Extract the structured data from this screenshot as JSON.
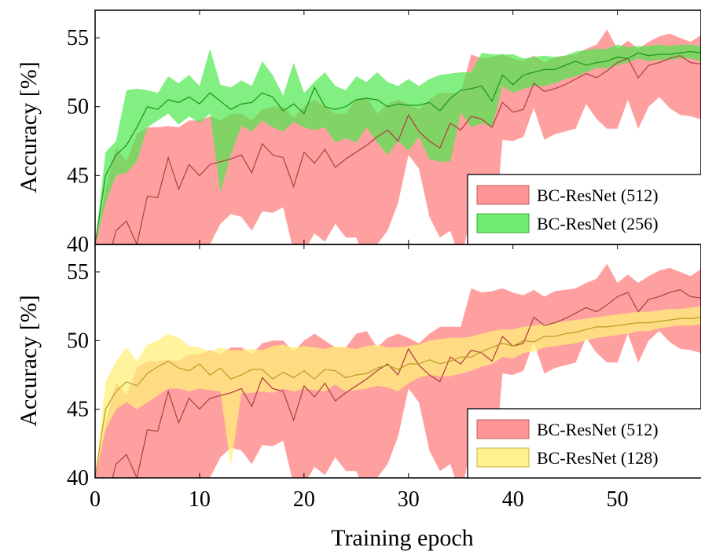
{
  "colors": {
    "red_band": "#ff8f8f",
    "red_line": "#b04545",
    "green_band": "#4ce84c",
    "green_line": "#1f9a1f",
    "yellow_band": "#fff07a",
    "yellow_line": "#b8a22a"
  },
  "chart_data": [
    {
      "type": "line",
      "panel": "top",
      "title": "",
      "xlabel": "",
      "ylabel": "Accuracy [%]",
      "xlim": [
        0,
        58
      ],
      "ylim": [
        40,
        57
      ],
      "xticks": [
        0,
        10,
        20,
        30,
        40,
        50
      ],
      "yticks": [
        40,
        45,
        50,
        55
      ],
      "x_tick_labels_shown": false,
      "grid": false,
      "legend_position": "bottom-right",
      "series": [
        {
          "name": "BC-ResNet (512)",
          "style": "mean line with shaded min–max band",
          "color": "red",
          "x": [
            0,
            1,
            2,
            3,
            4,
            5,
            6,
            7,
            8,
            9,
            10,
            11,
            12,
            13,
            14,
            15,
            16,
            17,
            18,
            19,
            20,
            21,
            22,
            23,
            24,
            25,
            26,
            27,
            28,
            29,
            30,
            31,
            32,
            33,
            34,
            35,
            36,
            37,
            38,
            39,
            40,
            41,
            42,
            43,
            44,
            45,
            46,
            47,
            48,
            49,
            50,
            51,
            52,
            53,
            54,
            55,
            56,
            57,
            58
          ],
          "mean": [
            40,
            38,
            41,
            41.7,
            40,
            43.5,
            43.4,
            46.3,
            44,
            45.8,
            45,
            45.8,
            46,
            46.2,
            46.5,
            45.2,
            47.3,
            46.5,
            46.3,
            44.2,
            46.7,
            45.9,
            46.9,
            45.6,
            46.2,
            46.7,
            47.2,
            47.8,
            48.3,
            47.5,
            49.4,
            48.2,
            47.5,
            47,
            48.8,
            48.3,
            49.3,
            49.1,
            48.5,
            50.3,
            49.6,
            49.8,
            51.7,
            51.1,
            51.3,
            51.6,
            52,
            52.4,
            52.1,
            52.6,
            53.2,
            53.5,
            52.1,
            53,
            53.2,
            53.5,
            53.7,
            53.2,
            53.1
          ],
          "lower": [
            40,
            37,
            37,
            37,
            37,
            37,
            38,
            39,
            38.5,
            39,
            39,
            40,
            41.5,
            42.2,
            42,
            41,
            42.4,
            42.3,
            42.7,
            39.5,
            39.5,
            40.8,
            40.2,
            41.5,
            40.5,
            40.5,
            38.5,
            40,
            41,
            43,
            46.5,
            45.5,
            42,
            40.5,
            41,
            38.8,
            42.2,
            41,
            38.5,
            47.6,
            47.5,
            47.8,
            49.9,
            47.6,
            48,
            48.2,
            48.4,
            50.2,
            49.1,
            48.4,
            48.4,
            50.5,
            48.4,
            50,
            50.7,
            49.9,
            49.4,
            49.3,
            49.1
          ],
          "upper": [
            40,
            44,
            47,
            46,
            48,
            48.5,
            48.5,
            48.6,
            48.5,
            49,
            49,
            49.3,
            49,
            49.5,
            49.5,
            49,
            49.8,
            50,
            50,
            49.2,
            50,
            50.5,
            50,
            49.5,
            49.5,
            50.5,
            50.7,
            49.5,
            50.2,
            50.5,
            50.2,
            49.8,
            50.5,
            51,
            51,
            51,
            53.8,
            53.5,
            53.6,
            53.8,
            53.5,
            53.3,
            53.7,
            53.2,
            53.6,
            53.7,
            53.8,
            54.2,
            54.5,
            55.6,
            54.2,
            54.8,
            54.2,
            54.7,
            55.1,
            55.3,
            55,
            54.7,
            55.2
          ]
        },
        {
          "name": "BC-ResNet (256)",
          "style": "mean line with shaded min–max band",
          "color": "green",
          "x": [
            0,
            1,
            2,
            3,
            4,
            5,
            6,
            7,
            8,
            9,
            10,
            11,
            12,
            13,
            14,
            15,
            16,
            17,
            18,
            19,
            20,
            21,
            22,
            23,
            24,
            25,
            26,
            27,
            28,
            29,
            30,
            31,
            32,
            33,
            34,
            35,
            36,
            37,
            38,
            39,
            40,
            41,
            42,
            43,
            44,
            45,
            46,
            47,
            48,
            49,
            50,
            51,
            52,
            53,
            54,
            55,
            56,
            57,
            58
          ],
          "mean": [
            40,
            45,
            46.5,
            47.2,
            48.5,
            50,
            49.8,
            50.5,
            50.3,
            50.7,
            50.2,
            51,
            50.4,
            49.8,
            50.2,
            50.3,
            51,
            50.7,
            49.7,
            50.2,
            49.5,
            51.4,
            50,
            49.8,
            50,
            50.5,
            50.6,
            50.5,
            50,
            50.2,
            50.1,
            50.1,
            50.3,
            49.7,
            50.6,
            51.2,
            51.3,
            51.5,
            50.4,
            52.3,
            51.6,
            52.3,
            52.5,
            52.7,
            52.7,
            53,
            53.3,
            53,
            53.2,
            53.3,
            53.6,
            53.5,
            53.9,
            53.7,
            53.8,
            53.8,
            53.9,
            54,
            53.9
          ],
          "lower": [
            40,
            43,
            45,
            45.2,
            46,
            48.5,
            49,
            49.5,
            48.7,
            49.3,
            48.8,
            49.5,
            43.8,
            46.5,
            48.6,
            48.2,
            49,
            48.5,
            48.2,
            48.9,
            48.5,
            48.3,
            48.5,
            47.4,
            47.7,
            47.4,
            48.5,
            47.4,
            46.5,
            47.5,
            46.8,
            47.8,
            46.2,
            46,
            46,
            49.6,
            48.5,
            48.8,
            48.5,
            51.5,
            51,
            51.3,
            51.5,
            51.5,
            51.7,
            52,
            52.2,
            52.5,
            52.8,
            52.8,
            53,
            53.2,
            53.5,
            53.3,
            53.4,
            53.4,
            53.5,
            53.5,
            53.3
          ],
          "upper": [
            40,
            46.7,
            47.5,
            51.2,
            51.3,
            51.2,
            51,
            52.2,
            51.7,
            52.3,
            51.5,
            54.2,
            51.6,
            51.4,
            51.9,
            51.5,
            53.3,
            52.3,
            50.8,
            53.2,
            51,
            51.8,
            52.5,
            51.5,
            51.2,
            52.2,
            51.8,
            52.5,
            51.8,
            51.5,
            52,
            51.5,
            52,
            52.3,
            52.4,
            52.5,
            52.5,
            53.9,
            53.8,
            53.8,
            53.8,
            53.5,
            53.6,
            53.7,
            53.6,
            53.7,
            54,
            54.1,
            54.2,
            54.2,
            54.5,
            54.3,
            54.4,
            54.4,
            54.5,
            54.4,
            54.5,
            54.5,
            54.4
          ]
        }
      ]
    },
    {
      "type": "line",
      "panel": "bottom",
      "title": "",
      "xlabel": "Training epoch",
      "ylabel": "Accuracy [%]",
      "xlim": [
        0,
        58
      ],
      "ylim": [
        40,
        57
      ],
      "xticks": [
        0,
        10,
        20,
        30,
        40,
        50
      ],
      "yticks": [
        40,
        45,
        50,
        55
      ],
      "x_tick_labels_shown": true,
      "grid": false,
      "legend_position": "bottom-right",
      "series": [
        {
          "name": "BC-ResNet (512)",
          "style": "mean line with shaded min–max band",
          "color": "red",
          "x": [
            0,
            1,
            2,
            3,
            4,
            5,
            6,
            7,
            8,
            9,
            10,
            11,
            12,
            13,
            14,
            15,
            16,
            17,
            18,
            19,
            20,
            21,
            22,
            23,
            24,
            25,
            26,
            27,
            28,
            29,
            30,
            31,
            32,
            33,
            34,
            35,
            36,
            37,
            38,
            39,
            40,
            41,
            42,
            43,
            44,
            45,
            46,
            47,
            48,
            49,
            50,
            51,
            52,
            53,
            54,
            55,
            56,
            57,
            58
          ],
          "mean": [
            40,
            38,
            41,
            41.7,
            40,
            43.5,
            43.4,
            46.3,
            44,
            45.8,
            45,
            45.8,
            46,
            46.2,
            46.5,
            45.2,
            47.3,
            46.5,
            46.3,
            44.2,
            46.7,
            45.9,
            46.9,
            45.6,
            46.2,
            46.7,
            47.2,
            47.8,
            48.3,
            47.5,
            49.4,
            48.2,
            47.5,
            47,
            48.8,
            48.3,
            49.3,
            49.1,
            48.5,
            50.3,
            49.6,
            49.8,
            51.7,
            51.1,
            51.3,
            51.6,
            52,
            52.4,
            52.1,
            52.6,
            53.2,
            53.5,
            52.1,
            53,
            53.2,
            53.5,
            53.7,
            53.2,
            53.1
          ],
          "lower": [
            40,
            37,
            37,
            37,
            37,
            37,
            38,
            39,
            38.5,
            39,
            39,
            40,
            41.5,
            42.2,
            42,
            41,
            42.4,
            42.3,
            42.7,
            39.5,
            39.5,
            40.8,
            40.2,
            41.5,
            40.5,
            40.5,
            38.5,
            40,
            41,
            43,
            46.5,
            45.5,
            42,
            40.5,
            41,
            38.8,
            42.2,
            41,
            38.5,
            47.6,
            47.5,
            47.8,
            49.9,
            47.6,
            48,
            48.2,
            48.4,
            50.2,
            49.1,
            48.4,
            48.4,
            50.5,
            48.4,
            50,
            50.7,
            49.9,
            49.4,
            49.3,
            49.1
          ],
          "upper": [
            40,
            44,
            47,
            46,
            48,
            48.5,
            48.5,
            48.6,
            48.5,
            49,
            49,
            49.3,
            49,
            49.5,
            49.5,
            49,
            49.8,
            50,
            50,
            49.2,
            50,
            50.5,
            50,
            49.5,
            49.5,
            50.5,
            50.7,
            49.5,
            50.2,
            50.5,
            50.2,
            49.8,
            50.5,
            51,
            51,
            51,
            53.8,
            53.5,
            53.6,
            53.8,
            53.5,
            53.3,
            53.7,
            53.2,
            53.6,
            53.7,
            53.8,
            54.2,
            54.5,
            55.6,
            54.2,
            54.8,
            54.2,
            54.7,
            55.1,
            55.3,
            55,
            54.7,
            55.2
          ]
        },
        {
          "name": "BC-ResNet (128)",
          "style": "mean line with shaded min–max band",
          "color": "yellow",
          "x": [
            0,
            1,
            2,
            3,
            4,
            5,
            6,
            7,
            8,
            9,
            10,
            11,
            12,
            13,
            14,
            15,
            16,
            17,
            18,
            19,
            20,
            21,
            22,
            23,
            24,
            25,
            26,
            27,
            28,
            29,
            30,
            31,
            32,
            33,
            34,
            35,
            36,
            37,
            38,
            39,
            40,
            41,
            42,
            43,
            44,
            45,
            46,
            47,
            48,
            49,
            50,
            51,
            52,
            53,
            54,
            55,
            56,
            57,
            58
          ],
          "mean": [
            40,
            45,
            46.3,
            47,
            46.7,
            47.6,
            48.1,
            48.5,
            48,
            47.8,
            48.3,
            47.5,
            48,
            47.2,
            47.5,
            47.9,
            47.9,
            47.2,
            47.7,
            47.3,
            47.8,
            47.2,
            47.9,
            47.8,
            47.3,
            47.5,
            47.6,
            48,
            48.2,
            47.9,
            48.3,
            48.3,
            48.6,
            48.3,
            48.5,
            48.8,
            48.8,
            49.2,
            49.5,
            49.8,
            49.6,
            50,
            49.9,
            50.3,
            50.3,
            50.5,
            50.6,
            50.8,
            51,
            51,
            51.1,
            51.2,
            51.3,
            51.3,
            51.4,
            51.5,
            51.6,
            51.6,
            51.7
          ],
          "lower": [
            40,
            43.5,
            45,
            45.5,
            45,
            45.5,
            46,
            46.5,
            46.5,
            46.3,
            46.5,
            46.4,
            46.3,
            40.8,
            46.2,
            46.2,
            46.3,
            46.2,
            46.5,
            46.3,
            46.5,
            46.4,
            46.3,
            46.8,
            46.3,
            46.4,
            46.5,
            46.7,
            46.6,
            46.3,
            46.9,
            47.3,
            47.5,
            47.4,
            47.4,
            47.6,
            47.8,
            48.1,
            48.3,
            48.8,
            48.7,
            49.1,
            49.2,
            49.5,
            49.6,
            49.7,
            49.8,
            50,
            50.2,
            50.3,
            50.4,
            50.5,
            50.7,
            50.7,
            50.9,
            51,
            51.1,
            51.1,
            51.2
          ],
          "upper": [
            40,
            47,
            48.5,
            49.5,
            48.5,
            49.7,
            50,
            50.5,
            50.2,
            49.6,
            49.5,
            49.2,
            49.5,
            49.3,
            49.3,
            49.4,
            49.3,
            49.6,
            49.7,
            49.5,
            49.6,
            49.5,
            49.4,
            49.6,
            49.5,
            49.4,
            49.6,
            49.7,
            49.5,
            49.5,
            49.6,
            49.7,
            50,
            50.1,
            50.2,
            50.2,
            50.3,
            50.5,
            50.7,
            50.8,
            50.8,
            51,
            51.1,
            51.2,
            51.3,
            51.4,
            51.5,
            51.6,
            51.7,
            51.8,
            51.9,
            52,
            52.1,
            52.1,
            52.2,
            52.3,
            52.3,
            52.4,
            52.5
          ]
        }
      ]
    }
  ]
}
